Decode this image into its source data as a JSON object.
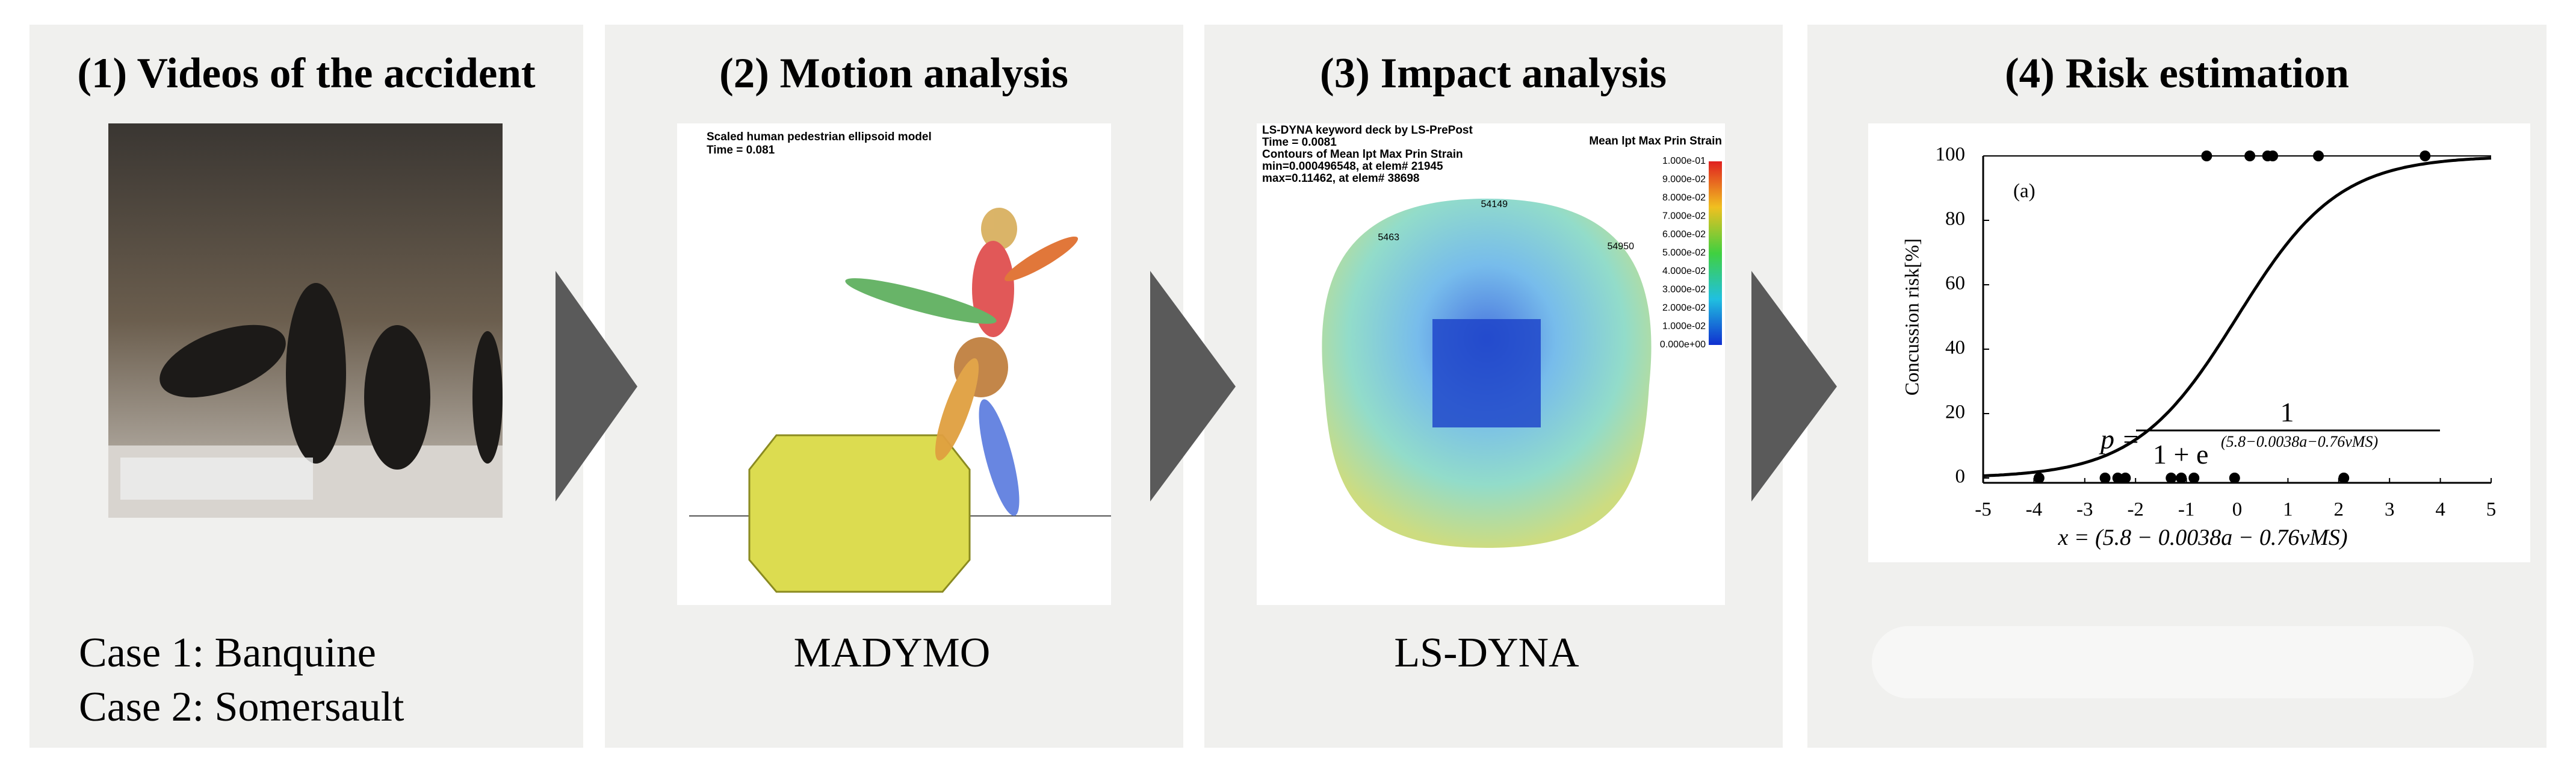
{
  "panels": [
    {
      "title": "(1) Videos of the accident",
      "captions": [
        "Case 1: Banquine",
        "Case 2: Somersault"
      ]
    },
    {
      "title": "(2) Motion analysis",
      "caption": "MADYMO",
      "image_texts": [
        "Scaled human pedestrian ellipsoid model",
        "Time =    0.081"
      ]
    },
    {
      "title": "(3) Impact analysis",
      "caption": "LS-DYNA",
      "image_texts": [
        "LS-DYNA keyword deck by LS-PrePost",
        "Time =    0.0081",
        "Contours of Mean  lpt Max Prin Strain",
        "min=0.000496548, at elem# 21945",
        "max=0.11462, at elem# 38698"
      ],
      "node_labels": [
        "54149",
        "54950",
        "5463"
      ],
      "colorbar": {
        "title": "Mean  lpt Max Prin Strain",
        "labels": [
          "1.000e-01",
          "9.000e-02",
          "8.000e-02",
          "7.000e-02",
          "6.000e-02",
          "5.000e-02",
          "4.000e-02",
          "3.000e-02",
          "2.000e-02",
          "1.000e-02",
          "0.000e+00"
        ]
      }
    },
    {
      "title": "(4) Risk estimation",
      "chart": {
        "type": "scatter",
        "panel_label": "(a)",
        "ylabel": "Concussion risk[%]",
        "xlabel": "x = (5.8 − 0.0038a − 0.76vMS)",
        "formula": {
          "lhs": "p =",
          "numerator": "1",
          "denominator": "1 + e",
          "exponent": "(5.8−0.0038a−0.76vMS)"
        },
        "xlim": [
          -5,
          5
        ],
        "ylim": [
          0,
          100
        ],
        "xticks": [
          -5,
          -4,
          -3,
          -2,
          -1,
          0,
          1,
          2,
          3,
          4,
          5
        ],
        "yticks": [
          0,
          20,
          40,
          60,
          80,
          100
        ],
        "points": {
          "x": [
            -0.6,
            0.25,
            0.6,
            0.7,
            1.6,
            3.7,
            -3.9,
            -2.6,
            -2.35,
            -2.2,
            -1.3,
            -1.1,
            -0.85,
            -0.05,
            2.1
          ],
          "y": [
            100,
            100,
            100,
            100,
            100,
            100,
            0,
            0,
            0,
            0,
            0,
            0,
            0,
            0,
            0
          ]
        }
      }
    }
  ]
}
